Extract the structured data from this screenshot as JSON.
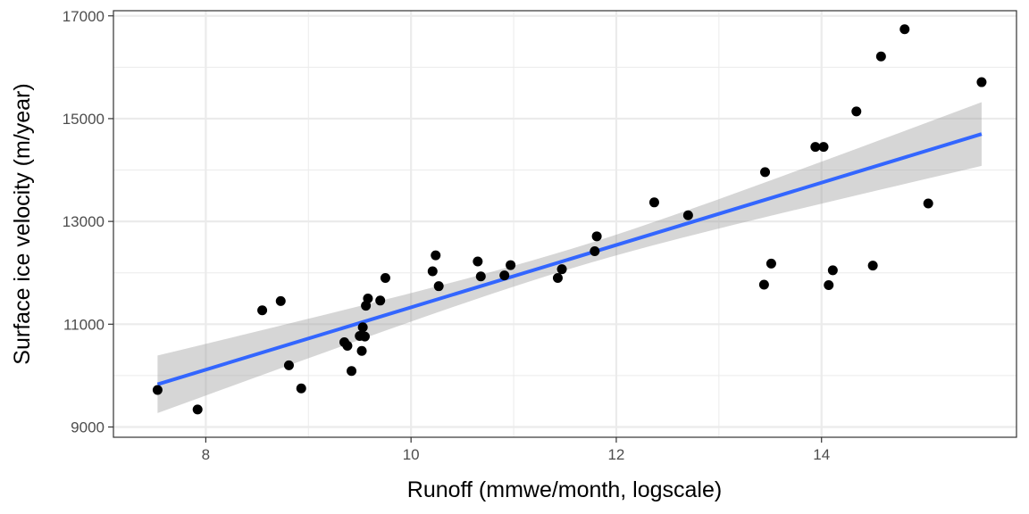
{
  "chart_data": {
    "type": "scatter",
    "xlabel": "Runoff (mmwe/month, logscale)",
    "ylabel": "Surface ice velocity (m/year)",
    "xlim": [
      7.1,
      15.9
    ],
    "ylim": [
      8800,
      17100
    ],
    "x_ticks": [
      8,
      10,
      12,
      14
    ],
    "y_ticks": [
      9000,
      11000,
      13000,
      15000,
      17000
    ],
    "x_tick_labels": [
      "8",
      "10",
      "12",
      "14"
    ],
    "y_tick_labels": [
      "9000",
      "11000",
      "13000",
      "15000",
      "17000"
    ],
    "grid": true,
    "points": [
      [
        7.53,
        9720
      ],
      [
        7.92,
        9340
      ],
      [
        8.55,
        11270
      ],
      [
        8.73,
        11450
      ],
      [
        8.81,
        10200
      ],
      [
        8.93,
        9750
      ],
      [
        9.35,
        10650
      ],
      [
        9.38,
        10580
      ],
      [
        9.42,
        10090
      ],
      [
        9.5,
        10770
      ],
      [
        9.52,
        10480
      ],
      [
        9.53,
        10940
      ],
      [
        9.55,
        10760
      ],
      [
        9.56,
        11360
      ],
      [
        9.58,
        11500
      ],
      [
        9.7,
        11460
      ],
      [
        9.75,
        11900
      ],
      [
        10.21,
        12030
      ],
      [
        10.24,
        12340
      ],
      [
        10.27,
        11740
      ],
      [
        10.65,
        12220
      ],
      [
        10.68,
        11930
      ],
      [
        10.91,
        11950
      ],
      [
        10.97,
        12150
      ],
      [
        11.43,
        11900
      ],
      [
        11.47,
        12070
      ],
      [
        11.79,
        12420
      ],
      [
        11.81,
        12710
      ],
      [
        12.37,
        13370
      ],
      [
        12.7,
        13120
      ],
      [
        13.44,
        11770
      ],
      [
        13.45,
        13960
      ],
      [
        13.51,
        12180
      ],
      [
        13.94,
        14450
      ],
      [
        14.02,
        14450
      ],
      [
        14.07,
        11760
      ],
      [
        14.11,
        12050
      ],
      [
        14.34,
        15140
      ],
      [
        14.5,
        12140
      ],
      [
        14.58,
        16210
      ],
      [
        14.81,
        16740
      ],
      [
        15.04,
        13350
      ],
      [
        15.56,
        15710
      ]
    ],
    "fit_line": {
      "x": [
        7.53,
        15.56
      ],
      "y": [
        9830,
        14700
      ],
      "color": "#3366FF"
    },
    "confidence_band": {
      "x": [
        7.53,
        15.56
      ],
      "lower": [
        9270,
        14080
      ],
      "upper": [
        10390,
        15320
      ],
      "color": "#999999"
    }
  }
}
